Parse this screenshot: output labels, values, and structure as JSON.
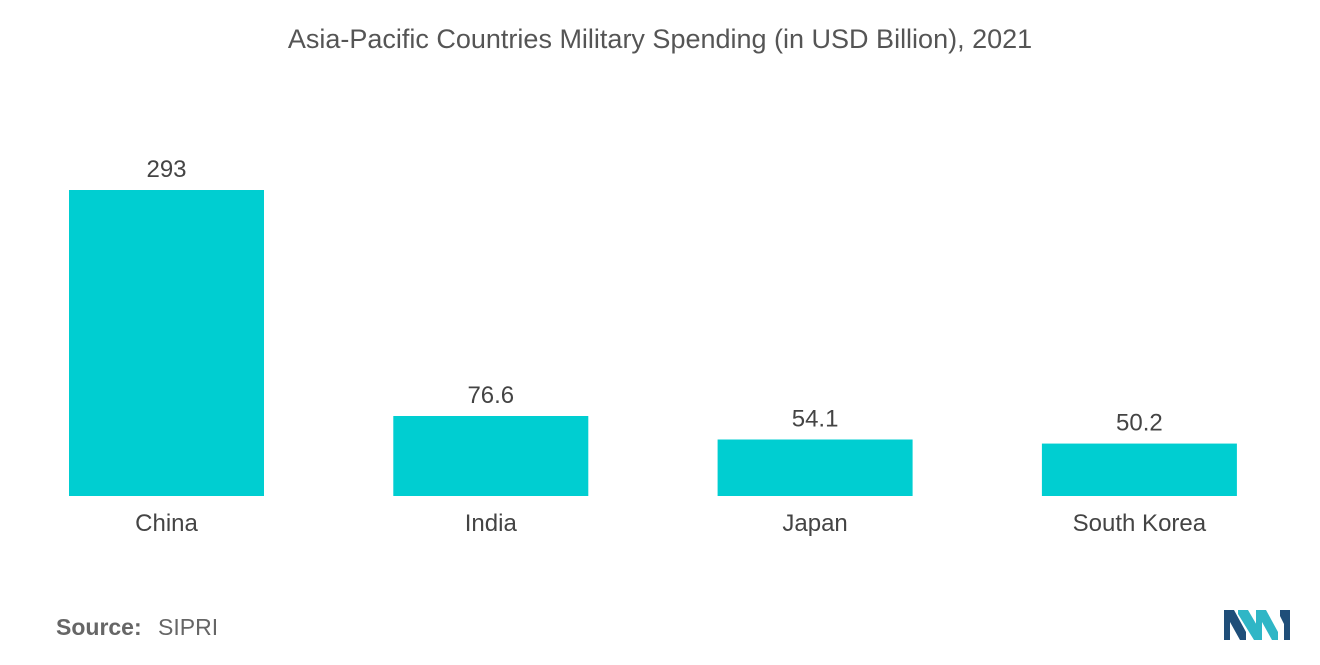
{
  "chart_data": {
    "type": "bar",
    "title": "Asia-Pacific Countries Military Spending (in USD Billion), 2021",
    "categories": [
      "China",
      "India",
      "Japan",
      "South Korea"
    ],
    "values": [
      293,
      76.6,
      54.1,
      50.2
    ],
    "value_labels": [
      "293",
      "76.6",
      "54.1",
      "50.2"
    ],
    "xlabel": "",
    "ylabel": "",
    "ylim": [
      0,
      293
    ],
    "grid": false,
    "legend": "none",
    "colors": {
      "bar": "#00CED1",
      "text": "#444444"
    }
  },
  "source": {
    "label": "Source:",
    "value": "SIPRI"
  },
  "logo": {
    "icon": "mordor-intelligence-logo",
    "colors": [
      "#1F4E79",
      "#2FB6C6"
    ]
  }
}
